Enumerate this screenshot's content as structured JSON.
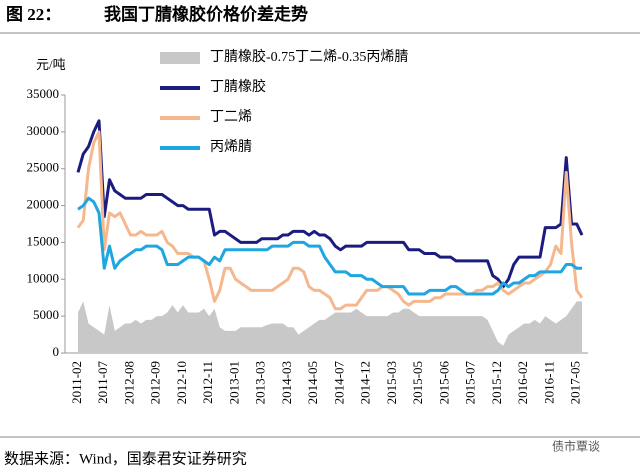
{
  "chart_data": {
    "type": "line",
    "label": "图 22：",
    "title": "我国丁腈橡胶价格价差走势",
    "y_unit": "元/吨",
    "source": "数据来源：Wind，国泰君安证券研究",
    "watermark": "债市覃谈",
    "ylim": [
      0,
      35000
    ],
    "yticks": [
      0,
      5000,
      10000,
      15000,
      20000,
      25000,
      30000,
      35000
    ],
    "categories": [
      "2011-02",
      null,
      null,
      null,
      null,
      "2011-07",
      null,
      null,
      null,
      null,
      "2012-08",
      null,
      null,
      null,
      null,
      "2012-09",
      null,
      null,
      null,
      null,
      "2012-10",
      null,
      null,
      null,
      null,
      "2012-11",
      null,
      null,
      null,
      null,
      "2013-01",
      null,
      null,
      null,
      null,
      "2013-03",
      null,
      null,
      null,
      null,
      "2014-03",
      null,
      null,
      null,
      null,
      "2014-05",
      null,
      null,
      null,
      null,
      "2014-07",
      null,
      null,
      null,
      null,
      "2014-12",
      null,
      null,
      null,
      null,
      "2015-03",
      null,
      null,
      null,
      null,
      "2015-05",
      null,
      null,
      null,
      null,
      "2015-06",
      null,
      null,
      null,
      null,
      "2015-07",
      null,
      null,
      null,
      null,
      "2015-12",
      null,
      null,
      null,
      null,
      "2016-02",
      null,
      null,
      null,
      null,
      "2016-11",
      null,
      null,
      null,
      null,
      "2017-05",
      null
    ],
    "series": [
      {
        "name": "丁腈橡胶-0.75丁二烯-0.35丙烯腈",
        "color": "#c8c8c8",
        "style": "area",
        "values": [
          5500,
          7000,
          4000,
          3500,
          3000,
          2500,
          6500,
          3000,
          3500,
          4000,
          4000,
          4500,
          4000,
          4500,
          4500,
          5000,
          5000,
          5500,
          6500,
          5500,
          6500,
          5500,
          5500,
          5500,
          6000,
          5000,
          6000,
          3500,
          3000,
          3000,
          3000,
          3500,
          3500,
          3500,
          3500,
          3500,
          3800,
          4000,
          4000,
          4000,
          3500,
          3500,
          2500,
          3000,
          3500,
          4000,
          4500,
          4500,
          5000,
          5500,
          5500,
          5500,
          5500,
          6000,
          5500,
          5000,
          5000,
          5000,
          5000,
          5000,
          5500,
          5500,
          6000,
          6000,
          5500,
          5000,
          5000,
          5000,
          5000,
          5000,
          5000,
          5000,
          5000,
          5000,
          5000,
          5000,
          5000,
          5000,
          4500,
          3000,
          1500,
          1000,
          2500,
          3000,
          3500,
          4000,
          4000,
          4500,
          4000,
          5000,
          4500,
          4000,
          4500,
          5000,
          6000,
          7000,
          7000
        ]
      },
      {
        "name": "丁腈橡胶",
        "color": "#1c1c80",
        "style": "line",
        "values": [
          24500,
          27000,
          28000,
          30000,
          31500,
          18500,
          23500,
          22000,
          21500,
          21000,
          21000,
          21000,
          21000,
          21500,
          21500,
          21500,
          21500,
          21000,
          20500,
          20000,
          20000,
          19500,
          19500,
          19500,
          19500,
          19500,
          16000,
          16500,
          16500,
          16000,
          15500,
          15000,
          15000,
          15000,
          15000,
          15500,
          15500,
          15500,
          15500,
          16000,
          16000,
          16500,
          16500,
          16500,
          16000,
          16500,
          16000,
          16000,
          15500,
          14500,
          14000,
          14500,
          14500,
          14500,
          14500,
          15000,
          15000,
          15000,
          15000,
          15000,
          15000,
          15000,
          15000,
          14000,
          14000,
          14000,
          13500,
          13500,
          13500,
          13000,
          13000,
          13000,
          12500,
          12500,
          12500,
          12500,
          12500,
          12500,
          12500,
          10500,
          10000,
          9000,
          10000,
          12000,
          13000,
          13000,
          13000,
          13000,
          13000,
          17000,
          17000,
          17000,
          17500,
          26500,
          17500,
          17500,
          16000
        ]
      },
      {
        "name": "丁二烯",
        "color": "#f5b88e",
        "style": "line",
        "values": [
          17000,
          18000,
          25000,
          28500,
          30000,
          14000,
          19000,
          18500,
          19000,
          17500,
          16000,
          16000,
          16500,
          16000,
          16000,
          16000,
          16500,
          15000,
          14500,
          13500,
          13500,
          13500,
          13000,
          13000,
          12500,
          10000,
          7000,
          8500,
          11500,
          11500,
          10000,
          9500,
          9000,
          8500,
          8500,
          8500,
          8500,
          8500,
          9000,
          9500,
          10000,
          11500,
          11500,
          11000,
          9000,
          8500,
          8500,
          8000,
          7500,
          6000,
          6000,
          6500,
          6500,
          6500,
          7500,
          8500,
          8500,
          8500,
          9000,
          9000,
          8500,
          8000,
          7000,
          6500,
          7000,
          7000,
          7000,
          7000,
          7500,
          7500,
          8000,
          8000,
          8000,
          8000,
          8000,
          8000,
          8500,
          8500,
          9000,
          9000,
          9500,
          8500,
          8000,
          8500,
          9000,
          9500,
          9500,
          10000,
          10500,
          11000,
          12000,
          14500,
          13500,
          24500,
          15000,
          8500,
          7500
        ]
      },
      {
        "name": "丙烯腈",
        "color": "#1ea6e0",
        "style": "line",
        "values": [
          19500,
          20000,
          21000,
          20500,
          19000,
          11500,
          14500,
          11500,
          12500,
          13000,
          13500,
          14000,
          14000,
          14500,
          14500,
          14500,
          14000,
          12000,
          12000,
          12000,
          12500,
          13000,
          13000,
          13000,
          12500,
          12000,
          13000,
          12500,
          14000,
          14000,
          14000,
          14000,
          14000,
          14000,
          14000,
          14000,
          14000,
          14500,
          14500,
          14500,
          14500,
          15000,
          15000,
          15000,
          14500,
          14500,
          14500,
          13000,
          12000,
          11000,
          11000,
          11000,
          10500,
          10500,
          10500,
          10000,
          10000,
          9500,
          9000,
          9000,
          9000,
          9000,
          9000,
          8000,
          8000,
          8000,
          8000,
          8500,
          8500,
          8500,
          8500,
          9000,
          9000,
          8500,
          8000,
          8000,
          8000,
          8000,
          8000,
          8000,
          8500,
          9500,
          9000,
          9500,
          9500,
          10000,
          10500,
          10500,
          11000,
          11000,
          11000,
          11000,
          11000,
          12000,
          12000,
          11500,
          11500
        ]
      }
    ]
  }
}
